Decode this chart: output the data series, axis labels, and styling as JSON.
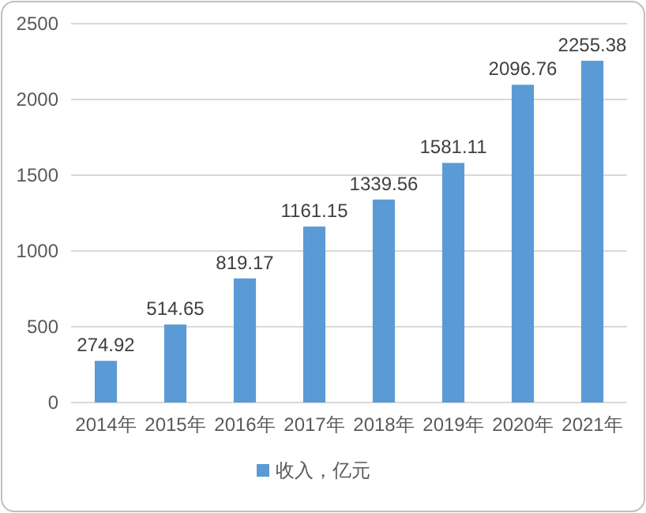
{
  "chart_data": {
    "type": "bar",
    "categories": [
      "2014年",
      "2015年",
      "2016年",
      "2017年",
      "2018年",
      "2019年",
      "2020年",
      "2021年"
    ],
    "series": [
      {
        "name": "收入，亿元",
        "color": "#5b9bd5",
        "values": [
          274.92,
          514.65,
          819.17,
          1161.15,
          1339.56,
          1581.11,
          2096.76,
          2255.38
        ]
      }
    ],
    "ylim": [
      0,
      2500
    ],
    "yticks": [
      0,
      500,
      1000,
      1500,
      2000,
      2500
    ],
    "grid": "y",
    "legend": "bottom",
    "data_labels": true
  }
}
